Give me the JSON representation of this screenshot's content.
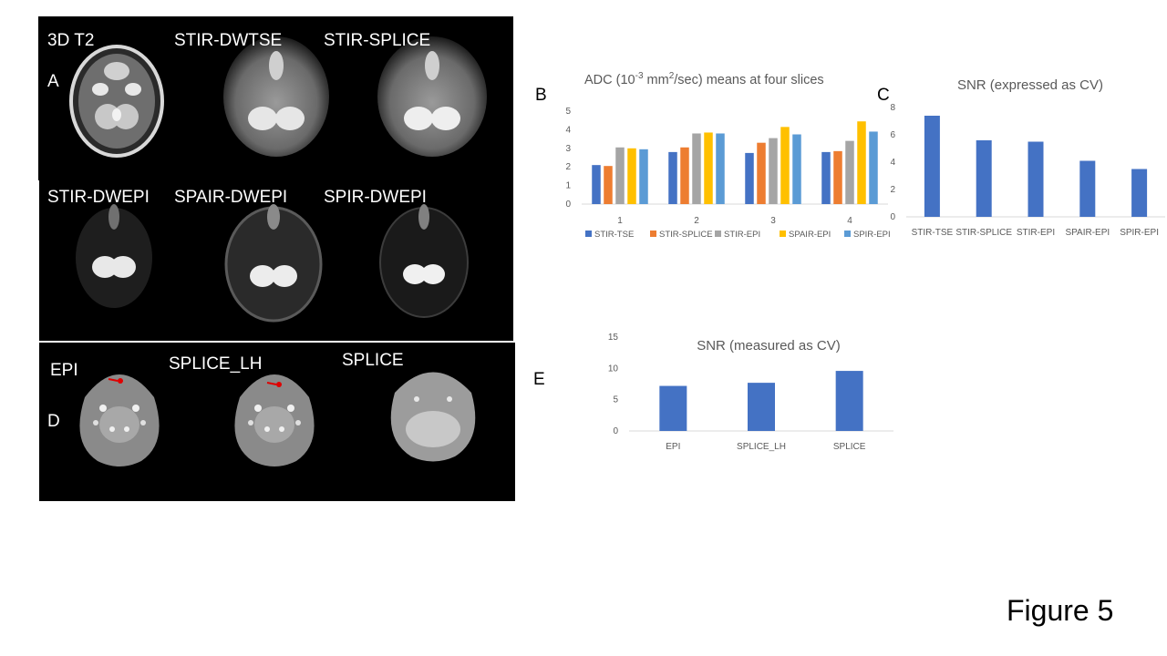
{
  "panels": {
    "row1": {
      "labels": [
        "3D T2",
        "STIR-DWTSE",
        "STIR-SPLICE"
      ],
      "letter": "A"
    },
    "row2": {
      "labels": [
        "STIR-DWEPI",
        "SPAIR-DWEPI",
        "SPIR-DWEPI"
      ]
    },
    "row3": {
      "labels": [
        "EPI",
        "SPLICE_LH",
        "SPLICE"
      ],
      "letter": "D"
    }
  },
  "letters": {
    "b": "B",
    "c": "C",
    "e": "E"
  },
  "figure_label": "Figure 5",
  "colors": {
    "STIR-TSE": "#4472c4",
    "STIR-SPLICE": "#ed7d31",
    "STIR-EPI": "#a5a5a5",
    "SPAIR-EPI": "#ffc000",
    "SPIR-EPI": "#5b9bd5",
    "single_bar": "#4472c4",
    "marker": "#e00000"
  },
  "chart_data": [
    {
      "id": "B",
      "type": "bar",
      "title_main": "ADC (10",
      "title_sup1": "-3",
      "title_mid": " mm",
      "title_sup2": "2",
      "title_end": "/sec) means at four slices",
      "categories": [
        "1",
        "2",
        "3",
        "4"
      ],
      "series": [
        {
          "name": "STIR-TSE",
          "values": [
            2.1,
            2.8,
            2.75,
            2.8
          ]
        },
        {
          "name": "STIR-SPLICE",
          "values": [
            2.05,
            3.05,
            3.3,
            2.85
          ]
        },
        {
          "name": "STIR-EPI",
          "values": [
            3.05,
            3.8,
            3.55,
            3.4
          ]
        },
        {
          "name": "SPAIR-EPI",
          "values": [
            3.0,
            3.85,
            4.15,
            4.45
          ]
        },
        {
          "name": "SPIR-EPI",
          "values": [
            2.95,
            3.8,
            3.75,
            3.9
          ]
        }
      ],
      "ylim": [
        0,
        5
      ],
      "yticks": [
        "0",
        "1",
        "2",
        "3",
        "4",
        "5"
      ],
      "legend": "bottom"
    },
    {
      "id": "C",
      "type": "bar",
      "title": "SNR (expressed as CV)",
      "categories": [
        "STIR-TSE",
        "STIR-SPLICE",
        "STIR-EPI",
        "SPAIR-EPI",
        "SPIR-EPI"
      ],
      "values": [
        7.4,
        5.6,
        5.5,
        4.1,
        3.5
      ],
      "ylim": [
        0,
        8
      ],
      "yticks": [
        "0",
        "2",
        "4",
        "6",
        "8"
      ]
    },
    {
      "id": "E",
      "type": "bar",
      "title": "SNR (measured as CV)",
      "categories": [
        "EPI",
        "SPLICE_LH",
        "SPLICE"
      ],
      "values": [
        7.2,
        7.7,
        9.6
      ],
      "ylim": [
        0,
        15
      ],
      "yticks": [
        "0",
        "5",
        "10",
        "15"
      ]
    }
  ]
}
